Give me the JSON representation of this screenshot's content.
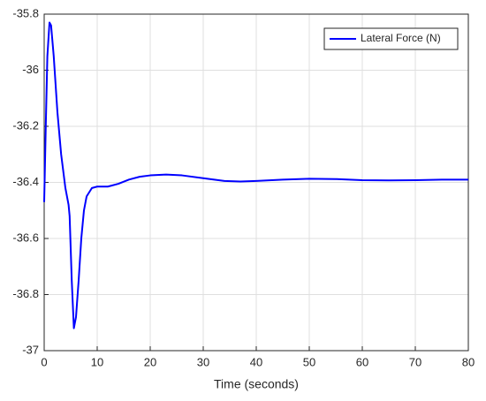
{
  "chart_data": {
    "type": "line",
    "xlabel": "Time (seconds)",
    "x": [
      0,
      0.3,
      0.6,
      1.0,
      1.3,
      1.8,
      2.5,
      3.2,
      4.0,
      4.5,
      4.6,
      4.8,
      5.2,
      5.6,
      6.0,
      6.5,
      7.0,
      7.5,
      8.0,
      9,
      10,
      12,
      14,
      16,
      18,
      20,
      23,
      26,
      30,
      34,
      37,
      40,
      45,
      50,
      55,
      60,
      65,
      70,
      75,
      80
    ],
    "series": [
      {
        "name": "Lateral Force (N)",
        "color": "#0000ff",
        "values": [
          -36.47,
          -36.2,
          -35.95,
          -35.83,
          -35.84,
          -35.95,
          -36.15,
          -36.3,
          -36.42,
          -36.47,
          -36.48,
          -36.52,
          -36.75,
          -36.92,
          -36.88,
          -36.75,
          -36.6,
          -36.5,
          -36.45,
          -36.42,
          -36.415,
          -36.415,
          -36.405,
          -36.39,
          -36.38,
          -36.375,
          -36.372,
          -36.375,
          -36.385,
          -36.395,
          -36.397,
          -36.395,
          -36.39,
          -36.387,
          -36.388,
          -36.392,
          -36.393,
          -36.392,
          -36.39,
          -36.39
        ]
      }
    ],
    "xlim": [
      0,
      80
    ],
    "xticks": [
      0,
      10,
      20,
      30,
      40,
      50,
      60,
      70,
      80
    ],
    "ylim": [
      -37,
      -35.8
    ],
    "yticks": [
      -37,
      -36.8,
      -36.6,
      -36.4,
      -36.2,
      -36,
      -35.8
    ],
    "grid": true,
    "legend": "upper right"
  }
}
